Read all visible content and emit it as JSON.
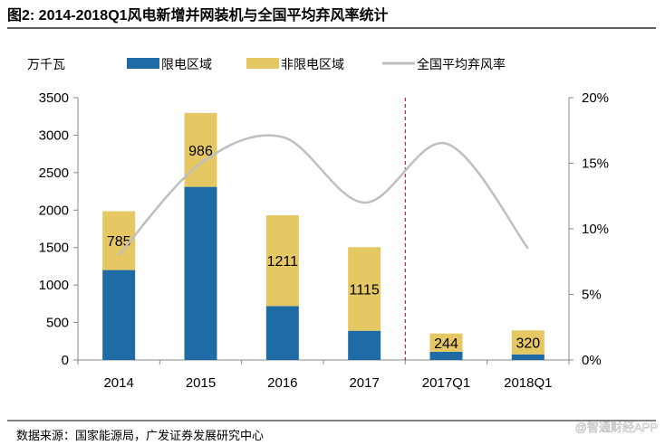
{
  "title": "图2: 2014-2018Q1风电新增并网装机与全国平均弃风率统计",
  "source": "数据来源：国家能源局，广发证券发展研究中心",
  "watermark": "@智通财经APP",
  "colors": {
    "limited": "#1F6BA5",
    "non_limited": "#E5C863",
    "rate": "#BFBFBF",
    "divider": "#C00000"
  },
  "chart_data": {
    "type": "bar",
    "title": "图2: 2014-2018Q1风电新增并网装机与全国平均弃风率统计",
    "ylabel": "万千瓦",
    "categories": [
      "2014",
      "2015",
      "2016",
      "2017",
      "2017Q1",
      "2018Q1"
    ],
    "ylim": [
      0,
      3500
    ],
    "yticks": [
      0,
      500,
      1000,
      1500,
      2000,
      2500,
      3000,
      3500
    ],
    "y2lim": [
      0,
      20
    ],
    "y2ticks": [
      "0%",
      "5%",
      "10%",
      "15%",
      "20%"
    ],
    "legend_position": "top",
    "series": [
      {
        "name": "限电区域",
        "kind": "bar-stacked",
        "values": [
          1200,
          2310,
          720,
          390,
          110,
          75
        ]
      },
      {
        "name": "非限电区域",
        "kind": "bar-stacked",
        "values": [
          785,
          986,
          1211,
          1115,
          244,
          320
        ],
        "labels": [
          "785",
          "986",
          "1211",
          "1115",
          "244",
          "320"
        ]
      },
      {
        "name": "全国平均弃风率",
        "kind": "line-smooth",
        "axis": "right",
        "unit": "%",
        "values": [
          8,
          15,
          17,
          12,
          16.5,
          8.5
        ]
      }
    ]
  }
}
